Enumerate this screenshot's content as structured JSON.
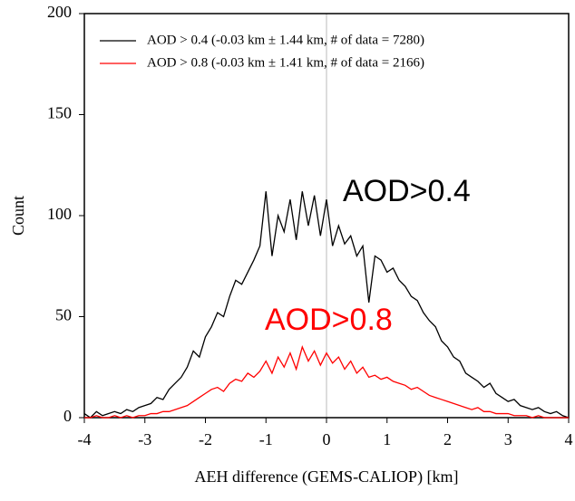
{
  "chart_data": {
    "type": "line",
    "xlabel": "AEH difference (GEMS-CALIOP) [km]",
    "ylabel": "Count",
    "x": [
      -4.0,
      -3.9,
      -3.8,
      -3.7,
      -3.6,
      -3.5,
      -3.4,
      -3.3,
      -3.2,
      -3.1,
      -3.0,
      -2.9,
      -2.8,
      -2.7,
      -2.6,
      -2.5,
      -2.4,
      -2.3,
      -2.2,
      -2.1,
      -2.0,
      -1.9,
      -1.8,
      -1.7,
      -1.6,
      -1.5,
      -1.4,
      -1.3,
      -1.2,
      -1.1,
      -1.0,
      -0.9,
      -0.8,
      -0.7,
      -0.6,
      -0.5,
      -0.4,
      -0.3,
      -0.2,
      -0.1,
      0.0,
      0.1,
      0.2,
      0.3,
      0.4,
      0.5,
      0.6,
      0.7,
      0.8,
      0.9,
      1.0,
      1.1,
      1.2,
      1.3,
      1.4,
      1.5,
      1.6,
      1.7,
      1.8,
      1.9,
      2.0,
      2.1,
      2.2,
      2.3,
      2.4,
      2.5,
      2.6,
      2.7,
      2.8,
      2.9,
      3.0,
      3.1,
      3.2,
      3.3,
      3.4,
      3.5,
      3.6,
      3.7,
      3.8,
      3.9,
      4.0
    ],
    "series": [
      {
        "name": "AOD > 0.4 (-0.03 km ±  1.44 km, # of data = 7280)",
        "color": "#000000",
        "values": [
          2,
          0,
          3,
          1,
          2,
          3,
          2,
          4,
          3,
          5,
          6,
          7,
          10,
          9,
          14,
          17,
          20,
          25,
          33,
          30,
          40,
          45,
          52,
          50,
          60,
          68,
          66,
          72,
          78,
          85,
          112,
          80,
          100,
          92,
          108,
          88,
          112,
          95,
          110,
          90,
          108,
          85,
          95,
          86,
          90,
          80,
          85,
          57,
          80,
          78,
          72,
          74,
          68,
          65,
          60,
          58,
          52,
          48,
          45,
          38,
          35,
          30,
          28,
          22,
          20,
          18,
          15,
          17,
          12,
          10,
          8,
          9,
          6,
          5,
          4,
          5,
          3,
          2,
          3,
          1,
          0
        ]
      },
      {
        "name": "AOD > 0.8 (-0.03 km ±  1.41 km, # of data = 2166)",
        "color": "#ff0000",
        "values": [
          0,
          0,
          1,
          0,
          0,
          1,
          0,
          1,
          0,
          1,
          1,
          2,
          2,
          3,
          3,
          4,
          5,
          6,
          8,
          10,
          12,
          14,
          15,
          13,
          17,
          19,
          18,
          22,
          20,
          23,
          28,
          22,
          30,
          25,
          32,
          24,
          35,
          28,
          33,
          26,
          32,
          27,
          30,
          24,
          28,
          22,
          25,
          20,
          21,
          19,
          20,
          18,
          17,
          16,
          14,
          15,
          13,
          11,
          10,
          9,
          8,
          7,
          6,
          5,
          4,
          5,
          3,
          3,
          2,
          2,
          2,
          1,
          1,
          1,
          0,
          1,
          0,
          0,
          0,
          0,
          0
        ]
      }
    ],
    "annotations": [
      {
        "text": "AOD>0.4",
        "color": "#000000"
      },
      {
        "text": "AOD>0.8",
        "color": "#ff0000"
      }
    ],
    "xlim": [
      -4,
      4
    ],
    "xticks": [
      -4,
      -3,
      -2,
      -1,
      0,
      1,
      2,
      3,
      4
    ],
    "ylim": [
      0,
      200
    ],
    "yticks": [
      0,
      50,
      100,
      150,
      200
    ],
    "legend": "upper left"
  }
}
